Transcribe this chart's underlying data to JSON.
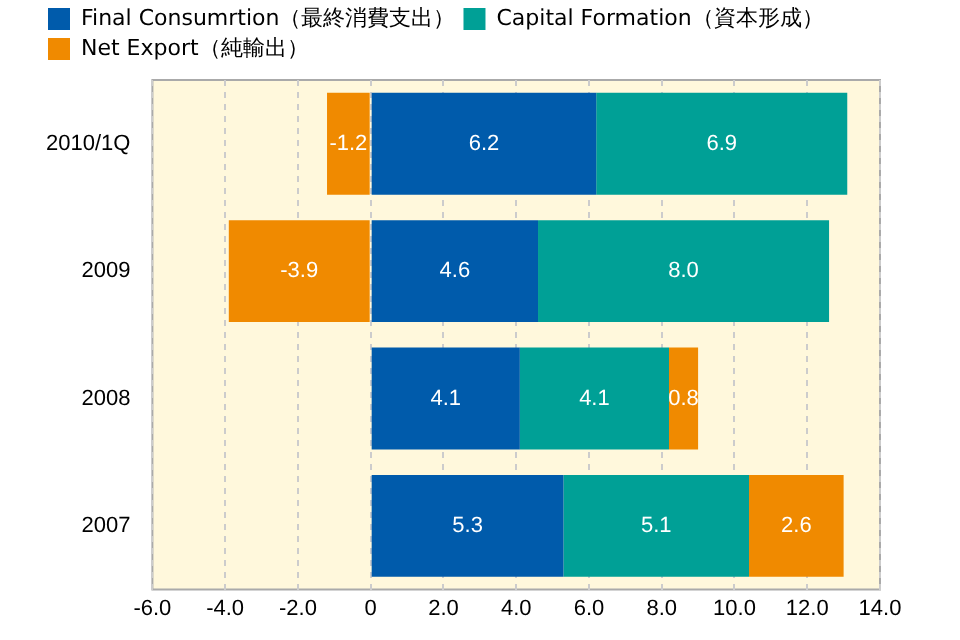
{
  "chart_data": {
    "type": "bar",
    "orientation": "horizontal",
    "stacked": true,
    "categories": [
      "2010/1Q",
      "2009",
      "2008",
      "2007"
    ],
    "series": [
      {
        "name": "Final Consumrtion（最終消費支出）",
        "color": "#005bab",
        "values": [
          6.2,
          4.6,
          4.1,
          5.3
        ],
        "value_labels": [
          "6.2",
          "4.6",
          "4.1",
          "5.3"
        ]
      },
      {
        "name": "Capital Formation（資本形成）",
        "color": "#00a096",
        "values": [
          6.9,
          8.0,
          4.1,
          5.1
        ],
        "value_labels": [
          "6.9",
          "8.0",
          "4.1",
          "5.1"
        ]
      },
      {
        "name": "Net Export（純輸出）",
        "color": "#f08a00",
        "values": [
          -1.2,
          -3.9,
          0.8,
          2.6
        ],
        "value_labels": [
          "-1.2",
          "-3.9",
          "0.8",
          "2.6"
        ]
      }
    ],
    "xlim": [
      -6,
      14
    ],
    "xticks": [
      {
        "value": -6,
        "label": "-6.0"
      },
      {
        "value": -4,
        "label": "-4.0"
      },
      {
        "value": -2,
        "label": "-2.0"
      },
      0,
      {
        "value": 2,
        "label": "2.0"
      },
      {
        "value": 4,
        "label": "4.0"
      },
      {
        "value": 6,
        "label": "6.0"
      },
      {
        "value": 8,
        "label": "8.0"
      },
      {
        "value": 10,
        "label": "10.0"
      },
      {
        "value": 12,
        "label": "12.0"
      },
      {
        "value": 14,
        "label": "14.0"
      }
    ],
    "grid": "x",
    "legend": "top left"
  }
}
